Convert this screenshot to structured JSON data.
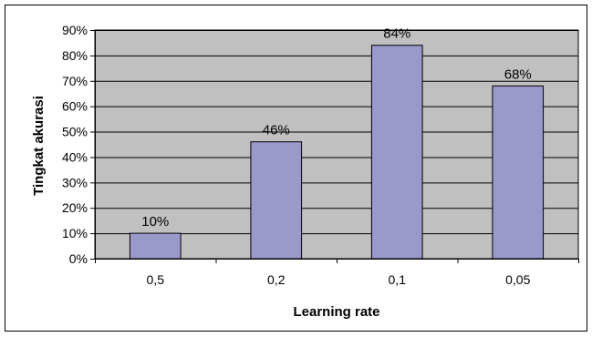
{
  "chart_data": {
    "type": "bar",
    "categories": [
      "0,5",
      "0,2",
      "0,1",
      "0,05"
    ],
    "values": [
      10,
      46,
      84,
      68
    ],
    "data_labels": [
      "10%",
      "46%",
      "84%",
      "68%"
    ],
    "xlabel": "Learning rate",
    "ylabel": "Tingkat akurasi",
    "ylim": [
      0,
      90
    ],
    "yticks": [
      0,
      10,
      20,
      30,
      40,
      50,
      60,
      70,
      80,
      90
    ],
    "ytick_labels": [
      "0%",
      "10%",
      "20%",
      "30%",
      "40%",
      "50%",
      "60%",
      "70%",
      "80%",
      "90%"
    ],
    "grid": true,
    "legend": "none",
    "colors": {
      "bar_fill": "#9999cc",
      "bar_stroke": "#000000",
      "plot_background": "#c0c0c0",
      "gridline": "#000000",
      "frame": "#000000"
    }
  }
}
